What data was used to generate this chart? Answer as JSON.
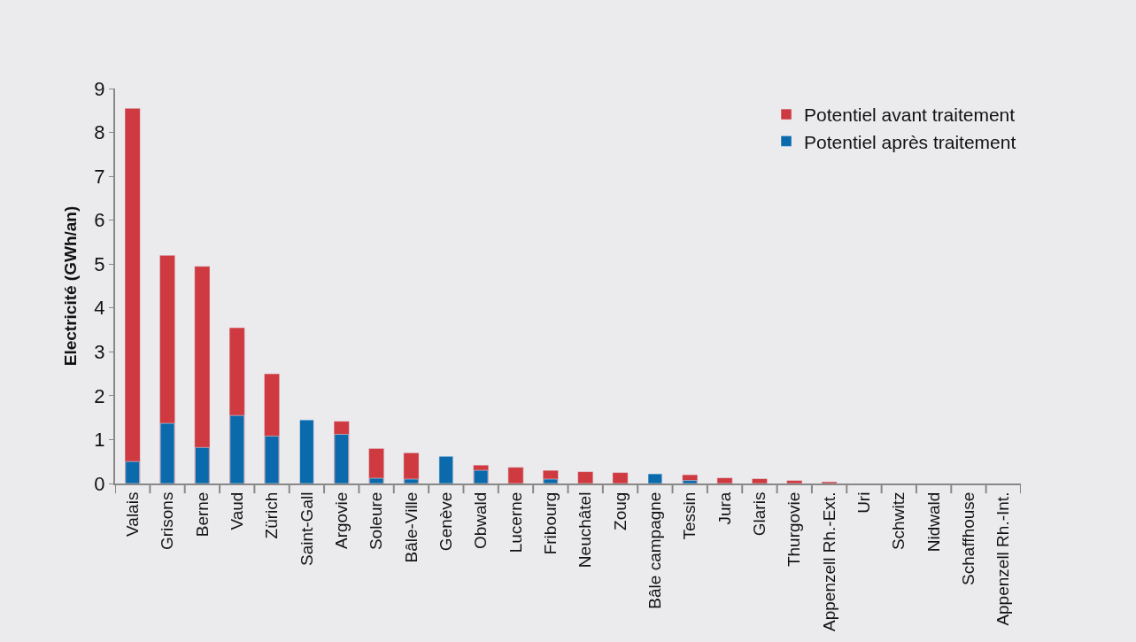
{
  "chart_data": {
    "type": "bar",
    "ylabel": "Electricité (GWh/an)",
    "categories": [
      "Valais",
      "Grisons",
      "Berne",
      "Vaud",
      "Zürich",
      "Saint-Gall",
      "Argovie",
      "Soleure",
      "Bâle-Ville",
      "Genève",
      "Obwald",
      "Lucerne",
      "Fribourg",
      "Neuchâtel",
      "Zoug",
      "Bâle campagne",
      "Tessin",
      "Jura",
      "Glaris",
      "Thurgovie",
      "Appenzell Rh.-Ext.",
      "Uri",
      "Schwitz",
      "Nidwald",
      "Schaffhouse",
      "Appenzell Rh.-Int."
    ],
    "series": [
      {
        "name": "Potentiel avant traitement",
        "color": "#cf3a40",
        "values": [
          8.55,
          5.2,
          4.95,
          3.55,
          2.5,
          null,
          1.42,
          0.8,
          0.7,
          null,
          0.42,
          0.37,
          0.3,
          0.27,
          0.25,
          null,
          0.2,
          0.13,
          0.11,
          0.07,
          0.04,
          null,
          null,
          null,
          null,
          null
        ]
      },
      {
        "name": "Potentiel après traitement",
        "color": "#0a6aab",
        "values": [
          0.5,
          1.37,
          0.82,
          1.55,
          1.08,
          1.45,
          1.12,
          0.12,
          0.1,
          0.62,
          0.3,
          null,
          0.1,
          null,
          null,
          0.22,
          0.07,
          null,
          null,
          null,
          null,
          null,
          null,
          null,
          null,
          null
        ]
      }
    ],
    "ylim": [
      0,
      9
    ],
    "yticks": [
      0,
      1,
      2,
      3,
      4,
      5,
      6,
      7,
      8,
      9
    ],
    "grid": false,
    "legend": "top right"
  }
}
